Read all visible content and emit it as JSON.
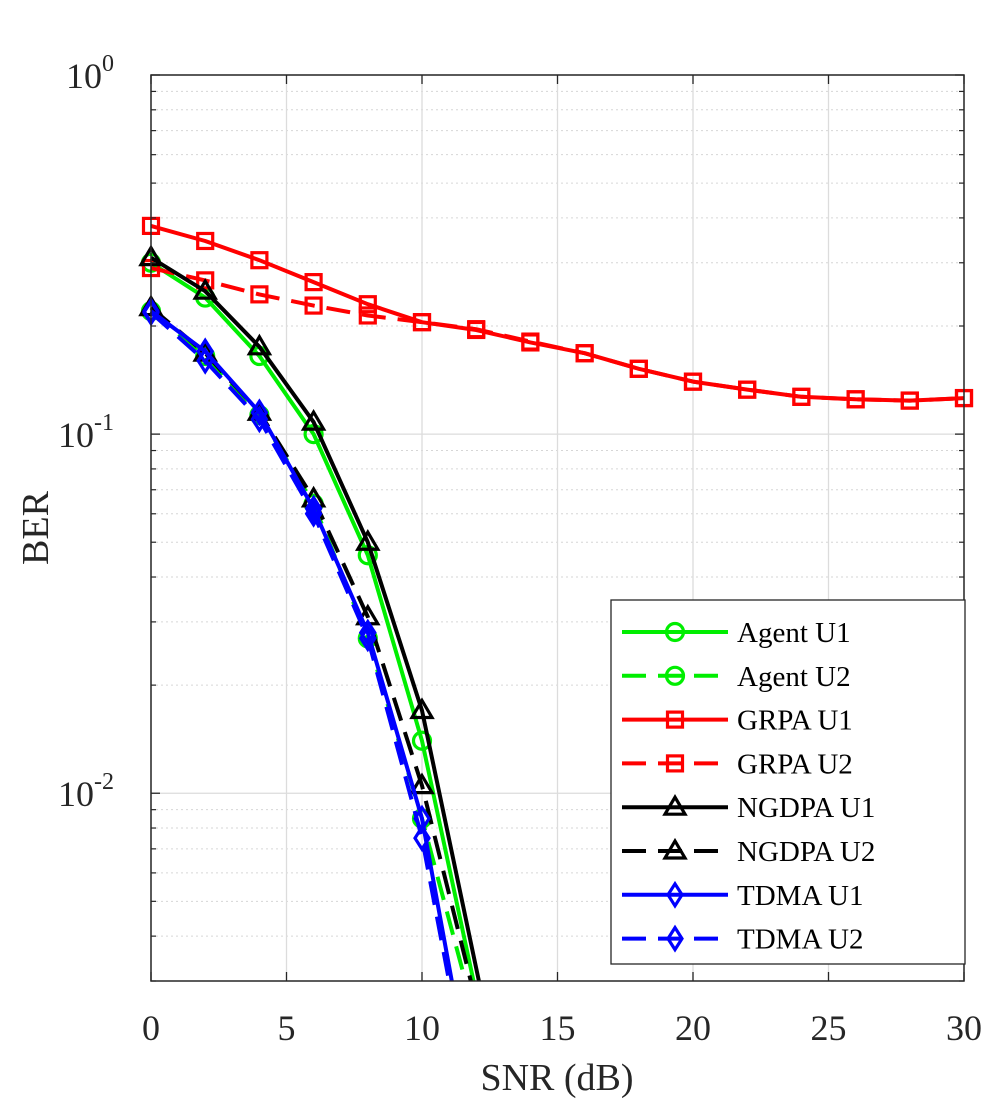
{
  "chart_data": {
    "type": "line",
    "xlabel": "SNR (dB)",
    "ylabel": "BER",
    "xlim": [
      0,
      30
    ],
    "ylim": [
      0.003,
      1
    ],
    "yscale": "log",
    "x_ticks": [
      {
        "value": 0,
        "label": "0"
      },
      {
        "value": 5,
        "label": "5"
      },
      {
        "value": 10,
        "label": "10"
      },
      {
        "value": 15,
        "label": "15"
      },
      {
        "value": 20,
        "label": "20"
      },
      {
        "value": 25,
        "label": "25"
      },
      {
        "value": 30,
        "label": "30"
      }
    ],
    "y_ticks": [
      {
        "value": 1,
        "base": "10",
        "exp": "0"
      },
      {
        "value": 0.1,
        "base": "10",
        "exp": "-1"
      },
      {
        "value": 0.01,
        "base": "10",
        "exp": "-2"
      }
    ],
    "grid": true,
    "legend_position": "bottom-right",
    "series": [
      {
        "name": "Agent U1",
        "color": "#00ee00",
        "dash": "solid",
        "marker": "circle",
        "x": [
          0,
          2,
          4,
          6,
          8,
          10,
          11.9
        ],
        "y": [
          0.3,
          0.24,
          0.165,
          0.1,
          0.046,
          0.014,
          0.003
        ]
      },
      {
        "name": "Agent U2",
        "color": "#00ee00",
        "dash": "dashed",
        "marker": "circle",
        "x": [
          0,
          2,
          4,
          6,
          8,
          10,
          11.6
        ],
        "y": [
          0.22,
          0.165,
          0.113,
          0.064,
          0.027,
          0.0085,
          0.003
        ]
      },
      {
        "name": "GRPA U1",
        "color": "#ff0000",
        "dash": "solid",
        "marker": "square",
        "x": [
          0,
          2,
          4,
          6,
          8,
          10,
          12,
          14,
          16,
          18,
          20,
          22,
          24,
          26,
          28,
          30
        ],
        "y": [
          0.38,
          0.345,
          0.305,
          0.265,
          0.23,
          0.205,
          0.195,
          0.18,
          0.168,
          0.152,
          0.14,
          0.133,
          0.127,
          0.125,
          0.124,
          0.126
        ]
      },
      {
        "name": "GRPA U2",
        "color": "#ff0000",
        "dash": "dashed",
        "marker": "square",
        "x": [
          0,
          2,
          4,
          6,
          8,
          10,
          12,
          14,
          16,
          18,
          20,
          22,
          24,
          26,
          28,
          30
        ],
        "y": [
          0.29,
          0.268,
          0.245,
          0.228,
          0.214,
          0.205,
          0.196,
          0.181,
          0.168,
          0.152,
          0.14,
          0.133,
          0.127,
          0.125,
          0.124,
          0.126
        ]
      },
      {
        "name": "NGDPA U1",
        "color": "#000000",
        "dash": "solid",
        "marker": "triangle",
        "x": [
          0,
          2,
          4,
          6,
          8,
          10,
          12.1
        ],
        "y": [
          0.31,
          0.25,
          0.175,
          0.108,
          0.05,
          0.017,
          0.003
        ]
      },
      {
        "name": "NGDPA U2",
        "color": "#000000",
        "dash": "dashed",
        "marker": "triangle",
        "x": [
          0,
          2,
          4,
          6,
          8,
          10,
          11.8
        ],
        "y": [
          0.225,
          0.168,
          0.115,
          0.066,
          0.031,
          0.0105,
          0.003
        ]
      },
      {
        "name": "TDMA U1",
        "color": "#0000ff",
        "dash": "solid",
        "marker": "diamond",
        "x": [
          0,
          2,
          4,
          6,
          8,
          10,
          11.1
        ],
        "y": [
          0.22,
          0.17,
          0.115,
          0.062,
          0.028,
          0.0085,
          0.003
        ]
      },
      {
        "name": "TDMA U2",
        "color": "#0000ff",
        "dash": "dashed",
        "marker": "diamond",
        "x": [
          0,
          2,
          4,
          6,
          8,
          10,
          11.0
        ],
        "y": [
          0.218,
          0.16,
          0.11,
          0.06,
          0.027,
          0.0075,
          0.003
        ]
      }
    ]
  }
}
